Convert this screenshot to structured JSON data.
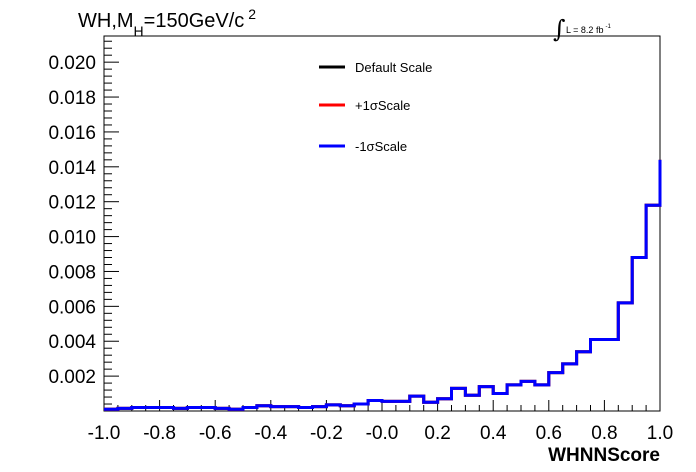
{
  "chart_data": {
    "type": "line",
    "title": {
      "prefix": "WH,M",
      "sub": "H",
      "mid": "=150GeV/c",
      "sup": "2"
    },
    "lumi": {
      "integral": "∫",
      "text": "L = 8.2 fb",
      "sup": "-1"
    },
    "xlabel": "WHNNScore",
    "ylabel": "",
    "xlim": [
      -1.0,
      1.0
    ],
    "ylim": [
      0,
      0.0215
    ],
    "xticks": [
      "-1.0",
      "-0.8",
      "-0.6",
      "-0.4",
      "-0.2",
      "-0.0",
      "0.2",
      "0.4",
      "0.6",
      "0.8",
      "1.0"
    ],
    "yticks": [
      "0.002",
      "0.004",
      "0.006",
      "0.008",
      "0.010",
      "0.012",
      "0.014",
      "0.016",
      "0.018",
      "0.020"
    ],
    "grid": false,
    "legend_position": "top-center",
    "bin_edges": [
      -1.0,
      -0.95,
      -0.9,
      -0.85,
      -0.8,
      -0.75,
      -0.7,
      -0.65,
      -0.6,
      -0.55,
      -0.5,
      -0.45,
      -0.4,
      -0.35,
      -0.3,
      -0.25,
      -0.2,
      -0.15,
      -0.1,
      -0.05,
      0.0,
      0.05,
      0.1,
      0.15,
      0.2,
      0.25,
      0.3,
      0.35,
      0.4,
      0.45,
      0.5,
      0.55,
      0.6,
      0.65,
      0.7,
      0.75,
      0.8,
      0.85,
      0.9,
      0.95,
      1.0
    ],
    "series": [
      {
        "name": "Default Scale",
        "color": "#000000",
        "values": [
          0.0001,
          0.00015,
          0.0002,
          0.0002,
          0.0002,
          0.00015,
          0.0002,
          0.0002,
          0.00015,
          0.0001,
          0.0002,
          0.0003,
          0.00025,
          0.00025,
          0.0002,
          0.00025,
          0.00035,
          0.0003,
          0.0004,
          0.0006,
          0.00055,
          0.00055,
          0.00085,
          0.0005,
          0.0007,
          0.0013,
          0.0009,
          0.0014,
          0.001,
          0.0015,
          0.0017,
          0.0015,
          0.0022,
          0.0027,
          0.0034,
          0.0041,
          0.0041,
          0.0062,
          0.0088,
          0.0118,
          0.0144
        ]
      },
      {
        "name": "+1σScale",
        "color": "#ff0000",
        "values": [
          0.0001,
          0.00015,
          0.0002,
          0.0002,
          0.0002,
          0.00015,
          0.0002,
          0.0002,
          0.00015,
          0.0001,
          0.0002,
          0.0003,
          0.00025,
          0.00025,
          0.0002,
          0.00025,
          0.00035,
          0.0003,
          0.0004,
          0.0006,
          0.00055,
          0.00055,
          0.00085,
          0.0005,
          0.0007,
          0.0013,
          0.0009,
          0.0014,
          0.001,
          0.0015,
          0.0017,
          0.0015,
          0.0022,
          0.0027,
          0.0034,
          0.0041,
          0.0041,
          0.0062,
          0.0088,
          0.0118,
          0.0144
        ]
      },
      {
        "name": "-1σScale",
        "color": "#0000ff",
        "values": [
          0.0001,
          0.00015,
          0.0002,
          0.0002,
          0.0002,
          0.00015,
          0.0002,
          0.0002,
          0.00015,
          0.0001,
          0.0002,
          0.0003,
          0.00025,
          0.00025,
          0.0002,
          0.00025,
          0.00035,
          0.0003,
          0.0004,
          0.0006,
          0.00055,
          0.00055,
          0.00085,
          0.0005,
          0.0007,
          0.0013,
          0.0009,
          0.0014,
          0.001,
          0.0015,
          0.0017,
          0.0015,
          0.0022,
          0.0027,
          0.0034,
          0.0041,
          0.0041,
          0.0062,
          0.0088,
          0.0118,
          0.0144
        ]
      }
    ]
  }
}
